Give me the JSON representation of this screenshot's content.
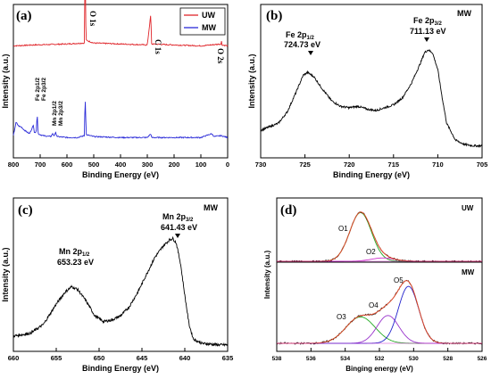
{
  "chart_data": [
    {
      "type": "line",
      "panel": "(a)",
      "xlabel": "Binding Energy (eV)",
      "ylabel": "Intensity (a.u.)",
      "xlim": [
        800,
        0
      ],
      "xticks": [
        800,
        700,
        600,
        500,
        400,
        300,
        200,
        100,
        0
      ],
      "legend_position": "top-right",
      "series": [
        {
          "name": "UW",
          "color": "#e0262b",
          "baseline": 0.73,
          "points": [
            [
              800,
              0.0
            ],
            [
              720,
              0.01
            ],
            [
              600,
              0.02
            ],
            [
              535,
              0.03
            ],
            [
              532,
              0.95
            ],
            [
              529,
              0.06
            ],
            [
              500,
              0.03
            ],
            [
              400,
              0.02
            ],
            [
              300,
              0.01
            ],
            [
              287,
              0.33
            ],
            [
              284,
              0.02
            ],
            [
              200,
              0.01
            ],
            [
              100,
              0.0
            ],
            [
              25,
              0.02
            ],
            [
              23,
              0.05
            ],
            [
              21,
              0.01
            ],
            [
              0,
              0.0
            ]
          ]
        },
        {
          "name": "MW",
          "color": "#2b2bd8",
          "baseline": 0.12,
          "points": [
            [
              800,
              0.04
            ],
            [
              790,
              0.18
            ],
            [
              780,
              0.14
            ],
            [
              770,
              0.13
            ],
            [
              760,
              0.1
            ],
            [
              740,
              0.06
            ],
            [
              725,
              0.15
            ],
            [
              722,
              0.08
            ],
            [
              715,
              0.07
            ],
            [
              711,
              0.28
            ],
            [
              708,
              0.06
            ],
            [
              690,
              0.04
            ],
            [
              660,
              0.03
            ],
            [
              654,
              0.06
            ],
            [
              648,
              0.04
            ],
            [
              642,
              0.07
            ],
            [
              636,
              0.03
            ],
            [
              600,
              0.02
            ],
            [
              560,
              0.02
            ],
            [
              535,
              0.04
            ],
            [
              532,
              0.46
            ],
            [
              528,
              0.05
            ],
            [
              500,
              0.03
            ],
            [
              400,
              0.02
            ],
            [
              300,
              0.02
            ],
            [
              287,
              0.06
            ],
            [
              284,
              0.02
            ],
            [
              200,
              0.02
            ],
            [
              100,
              0.02
            ],
            [
              60,
              0.06
            ],
            [
              50,
              0.03
            ],
            [
              25,
              0.04
            ],
            [
              0,
              0.02
            ]
          ]
        }
      ],
      "annotations": [
        {
          "text": "O 1s",
          "at": 532
        },
        {
          "text": "C 1s",
          "at": 285
        },
        {
          "text": "O 2s",
          "at": 23
        },
        {
          "text": "Fe 2p1/2",
          "at": 725
        },
        {
          "text": "Fe 2p3/2",
          "at": 711
        },
        {
          "text": "Mn 2p1/2",
          "at": 653
        },
        {
          "text": "Mn 2p3/2",
          "at": 641
        }
      ]
    },
    {
      "type": "line",
      "panel": "(b)",
      "xlabel": "Binding Energy (eV)",
      "ylabel": "Intensity (a.u.)",
      "xlim": [
        730,
        705
      ],
      "xticks": [
        730,
        725,
        720,
        715,
        710,
        705
      ],
      "corner_label": "MW",
      "series": [
        {
          "name": "",
          "color": "#000000",
          "points": [
            [
              730,
              0.17
            ],
            [
              728,
              0.22
            ],
            [
              727,
              0.3
            ],
            [
              726,
              0.44
            ],
            [
              725.2,
              0.56
            ],
            [
              724.7,
              0.58
            ],
            [
              724,
              0.55
            ],
            [
              723,
              0.46
            ],
            [
              722,
              0.38
            ],
            [
              721,
              0.34
            ],
            [
              720,
              0.33
            ],
            [
              719,
              0.34
            ],
            [
              718,
              0.32
            ],
            [
              717,
              0.31
            ],
            [
              716,
              0.33
            ],
            [
              715,
              0.35
            ],
            [
              714,
              0.4
            ],
            [
              713,
              0.5
            ],
            [
              712,
              0.64
            ],
            [
              711.5,
              0.72
            ],
            [
              711.1,
              0.74
            ],
            [
              710.6,
              0.72
            ],
            [
              710,
              0.6
            ],
            [
              709.5,
              0.4
            ],
            [
              709,
              0.22
            ],
            [
              708,
              0.1
            ],
            [
              707,
              0.07
            ],
            [
              706,
              0.06
            ],
            [
              705,
              0.06
            ]
          ]
        }
      ],
      "annotations": [
        {
          "text": "Fe 2p1/2",
          "value": "724.73 eV",
          "at": 724.73
        },
        {
          "text": "Fe 2p3/2",
          "value": "711.13 eV",
          "at": 711.13
        }
      ]
    },
    {
      "type": "line",
      "panel": "(c)",
      "xlabel": "Binding Energy (eV)",
      "ylabel": "Intensity (a.u.)",
      "xlim": [
        660,
        635
      ],
      "xticks": [
        660,
        655,
        650,
        645,
        640,
        635
      ],
      "corner_label": "MW",
      "series": [
        {
          "name": "",
          "color": "#000000",
          "points": [
            [
              660,
              0.08
            ],
            [
              658,
              0.1
            ],
            [
              656.5,
              0.16
            ],
            [
              655,
              0.3
            ],
            [
              654,
              0.38
            ],
            [
              653.2,
              0.42
            ],
            [
              652.5,
              0.4
            ],
            [
              651.5,
              0.32
            ],
            [
              650.5,
              0.22
            ],
            [
              649.5,
              0.18
            ],
            [
              648.5,
              0.19
            ],
            [
              647.5,
              0.22
            ],
            [
              646.5,
              0.28
            ],
            [
              645.5,
              0.38
            ],
            [
              644.5,
              0.5
            ],
            [
              643.5,
              0.62
            ],
            [
              642.5,
              0.7
            ],
            [
              641.8,
              0.74
            ],
            [
              641.4,
              0.75
            ],
            [
              641,
              0.72
            ],
            [
              640.5,
              0.58
            ],
            [
              640,
              0.36
            ],
            [
              639.5,
              0.16
            ],
            [
              639,
              0.06
            ],
            [
              638,
              0.03
            ],
            [
              636,
              0.02
            ],
            [
              635,
              0.02
            ]
          ]
        }
      ],
      "annotations": [
        {
          "text": "Mn 2p1/2",
          "value": "653.23 eV",
          "at": 653.23
        },
        {
          "text": "Mn 2p3/2",
          "value": "641.43 eV",
          "at": 641.43
        }
      ]
    },
    {
      "type": "line",
      "panel": "(d)",
      "xlabel": "Binging energy (eV)",
      "ylabel": "Intensity (a.u.)",
      "xlim": [
        538,
        526
      ],
      "xticks": [
        538,
        536,
        534,
        532,
        530,
        528,
        526
      ],
      "subpanels": [
        {
          "label": "UW",
          "components": [
            {
              "name": "O1",
              "color": "#22aa22",
              "center": 533.1,
              "fwhm": 1.5,
              "height": 0.88
            },
            {
              "name": "O2",
              "color": "#cc33cc",
              "center": 531.8,
              "fwhm": 1.6,
              "height": 0.06
            }
          ]
        },
        {
          "label": "MW",
          "components": [
            {
              "name": "O3",
              "color": "#22aa22",
              "center": 533.1,
              "fwhm": 2.0,
              "height": 0.38
            },
            {
              "name": "O4",
              "color": "#9933cc",
              "center": 531.5,
              "fwhm": 1.5,
              "height": 0.4
            },
            {
              "name": "O5",
              "color": "#2222cc",
              "center": 530.3,
              "fwhm": 1.4,
              "height": 0.82
            }
          ]
        }
      ],
      "envelope_color": "#e04a2a",
      "data_color": "#000000"
    }
  ]
}
